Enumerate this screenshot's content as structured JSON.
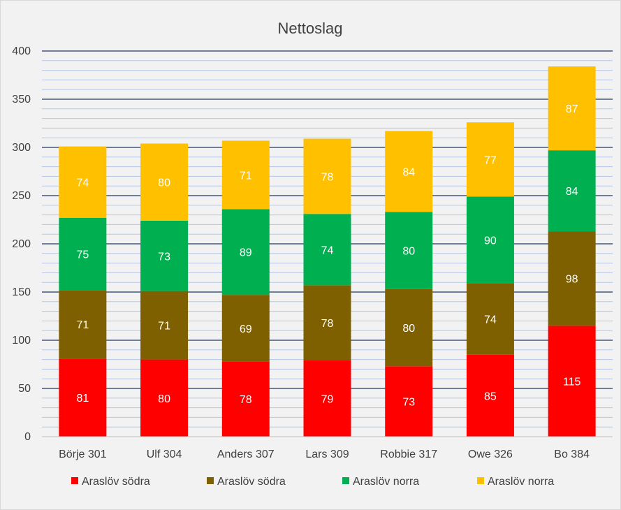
{
  "chart_data": {
    "type": "bar",
    "stacked": true,
    "title": "Nettoslag",
    "xlabel": "",
    "ylabel": "",
    "ylim": [
      0,
      400
    ],
    "major_ticks": [
      0,
      50,
      100,
      150,
      200,
      250,
      300,
      350,
      400
    ],
    "minor_tick_step": 10,
    "grid": true,
    "legend_position": "bottom",
    "categories": [
      "Börje 301",
      "Ulf 304",
      "Anders 307",
      "Lars 309",
      "Robbie 317",
      "Owe 326",
      "Bo 384"
    ],
    "series": [
      {
        "name": "Araslöv södra",
        "color": "#ff0000",
        "values": [
          81,
          80,
          78,
          79,
          73,
          85,
          115
        ]
      },
      {
        "name": "Araslöv södra",
        "color": "#7f6000",
        "values": [
          71,
          71,
          69,
          78,
          80,
          74,
          98
        ]
      },
      {
        "name": "Araslöv norra",
        "color": "#00b050",
        "values": [
          75,
          73,
          89,
          74,
          80,
          90,
          84
        ]
      },
      {
        "name": "Araslöv norra",
        "color": "#ffc000",
        "values": [
          74,
          80,
          71,
          78,
          84,
          77,
          87
        ]
      }
    ],
    "axis_color": "#bfbfbf",
    "major_grid_color": "#1f3864",
    "minor_grid_color": "#b4c7e7",
    "label_color": "#ffffff",
    "text_color": "#404040"
  }
}
